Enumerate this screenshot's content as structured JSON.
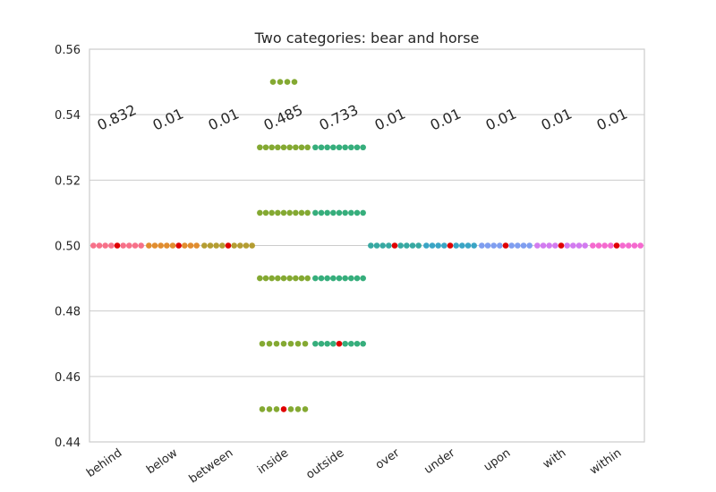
{
  "chart_data": {
    "type": "scatter",
    "style": "swarm",
    "title": "Two categories: bear and horse",
    "xlabel": "",
    "ylabel": "",
    "ylim": [
      0.44,
      0.56
    ],
    "yticks": [
      "0.44",
      "0.46",
      "0.48",
      "0.50",
      "0.52",
      "0.54",
      "0.56"
    ],
    "grid": true,
    "categories": [
      "behind",
      "below",
      "between",
      "inside",
      "outside",
      "over",
      "under",
      "upon",
      "with",
      "within"
    ],
    "colors": [
      "#f77189",
      "#e18d2f",
      "#b49d32",
      "#84a932",
      "#36ae7c",
      "#37a9a2",
      "#3aa5c5",
      "#7f9ef0",
      "#d27bf0",
      "#f569cf"
    ],
    "highlight_color": "#e00000",
    "annotations": [
      "0.832",
      "0.01",
      "0.01",
      "0.485",
      "0.733",
      "0.01",
      "0.01",
      "0.01",
      "0.01",
      "0.01"
    ],
    "series": [
      {
        "category": "behind",
        "groups": [
          {
            "y": 0.5,
            "count": 9,
            "highlight_index": 4
          }
        ]
      },
      {
        "category": "below",
        "groups": [
          {
            "y": 0.5,
            "count": 9,
            "highlight_index": 5
          }
        ]
      },
      {
        "category": "between",
        "groups": [
          {
            "y": 0.5,
            "count": 9,
            "highlight_index": 4
          }
        ]
      },
      {
        "category": "inside",
        "groups": [
          {
            "y": 0.55,
            "count": 4
          },
          {
            "y": 0.53,
            "count": 9
          },
          {
            "y": 0.51,
            "count": 9
          },
          {
            "y": 0.49,
            "count": 9
          },
          {
            "y": 0.47,
            "count": 7
          },
          {
            "y": 0.45,
            "count": 7,
            "highlight_index": 3
          }
        ]
      },
      {
        "category": "outside",
        "groups": [
          {
            "y": 0.53,
            "count": 9
          },
          {
            "y": 0.51,
            "count": 9
          },
          {
            "y": 0.49,
            "count": 9
          },
          {
            "y": 0.47,
            "count": 9,
            "highlight_index": 4
          }
        ]
      },
      {
        "category": "over",
        "groups": [
          {
            "y": 0.5,
            "count": 9,
            "highlight_index": 4
          }
        ]
      },
      {
        "category": "under",
        "groups": [
          {
            "y": 0.5,
            "count": 9,
            "highlight_index": 4
          }
        ]
      },
      {
        "category": "upon",
        "groups": [
          {
            "y": 0.5,
            "count": 9,
            "highlight_index": 4
          }
        ]
      },
      {
        "category": "with",
        "groups": [
          {
            "y": 0.5,
            "count": 9,
            "highlight_index": 4
          }
        ]
      },
      {
        "category": "within",
        "groups": [
          {
            "y": 0.5,
            "count": 9,
            "highlight_index": 4
          }
        ]
      }
    ]
  }
}
